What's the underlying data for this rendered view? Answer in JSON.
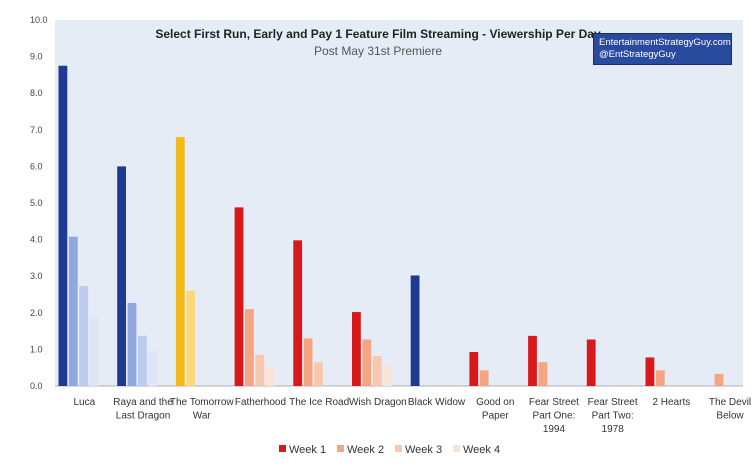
{
  "credit": {
    "line1": "EntertainmentStrategyGuy.com",
    "line2": "@EntStrategyGuy"
  },
  "chart_data": {
    "type": "bar",
    "title": "Select First Run, Early and Pay 1 Feature Film Streaming - Viewership Per Day",
    "subtitle": "Post May 31st Premiere",
    "xlabel": "",
    "ylabel": "",
    "ylim": [
      0,
      10
    ],
    "yticks": [
      "0.0",
      "1.0",
      "2.0",
      "3.0",
      "4.0",
      "5.0",
      "6.0",
      "7.0",
      "8.0",
      "9.0",
      "10.0"
    ],
    "grid": false,
    "legend_position": "bottom",
    "categories": [
      [
        "Luca"
      ],
      [
        "Raya and the",
        "Last Dragon"
      ],
      [
        "The Tomorrow",
        "War"
      ],
      [
        "Fatherhood"
      ],
      [
        "The Ice Road"
      ],
      [
        "Wish Dragon"
      ],
      [
        "Black Widow"
      ],
      [
        "Good on",
        "Paper"
      ],
      [
        "Fear Street",
        "Part One:",
        "1994"
      ],
      [
        "Fear Street",
        "Part Two:",
        "1978"
      ],
      [
        "2 Hearts"
      ],
      [
        "The Devil",
        "Below"
      ]
    ],
    "series": [
      {
        "name": "Week 1",
        "values": [
          8.75,
          6.0,
          6.8,
          4.88,
          3.98,
          2.02,
          3.02,
          0.93,
          1.37,
          1.27,
          0.78,
          null
        ]
      },
      {
        "name": "Week 2",
        "values": [
          4.08,
          2.27,
          2.6,
          2.1,
          1.3,
          1.27,
          null,
          0.43,
          0.65,
          null,
          0.43,
          0.33
        ]
      },
      {
        "name": "Week 3",
        "values": [
          2.73,
          1.37,
          null,
          0.85,
          0.65,
          0.82,
          null,
          null,
          null,
          null,
          null,
          null
        ]
      },
      {
        "name": "Week 4",
        "values": [
          1.9,
          0.97,
          null,
          0.53,
          null,
          0.55,
          null,
          null,
          null,
          null,
          null,
          null
        ]
      }
    ],
    "legend_colors": [
      "#d7191c",
      "#f4a582",
      "#f7c8ae",
      "#fbe3d6"
    ],
    "bar_colors": {
      "Luca": [
        "#1f3a93",
        "#8fa9e0",
        "#bccbee",
        "#dde5f7"
      ],
      "Raya and the Last Dragon": [
        "#1f3a93",
        "#8fa9e0",
        "#bccbee",
        "#dde5f7"
      ],
      "The Tomorrow War": [
        "#f2b91c",
        "#fad97c",
        "#fce7b0",
        "#fdf2d6"
      ],
      "Fatherhood": [
        "#d7191c",
        "#f4a582",
        "#f7c8ae",
        "#fbe3d6"
      ],
      "The Ice Road": [
        "#d7191c",
        "#f4a582",
        "#f7c8ae",
        "#fbe3d6"
      ],
      "Wish Dragon": [
        "#d7191c",
        "#f4a582",
        "#f7c8ae",
        "#fbe3d6"
      ],
      "Black Widow": [
        "#1f3a93",
        "#8fa9e0",
        "#bccbee",
        "#dde5f7"
      ],
      "Good on Paper": [
        "#d7191c",
        "#f4a582",
        "#f7c8ae",
        "#fbe3d6"
      ],
      "Fear Street Part One: 1994": [
        "#d7191c",
        "#f4a582",
        "#f7c8ae",
        "#fbe3d6"
      ],
      "Fear Street Part Two: 1978": [
        "#d7191c",
        "#f4a582",
        "#f7c8ae",
        "#fbe3d6"
      ],
      "2 Hearts": [
        "#d7191c",
        "#f4a582",
        "#f7c8ae",
        "#fbe3d6"
      ],
      "The Devil Below": [
        "#d7191c",
        "#f4a582",
        "#f7c8ae",
        "#fbe3d6"
      ]
    },
    "plot_background": "#e6ecf5"
  }
}
